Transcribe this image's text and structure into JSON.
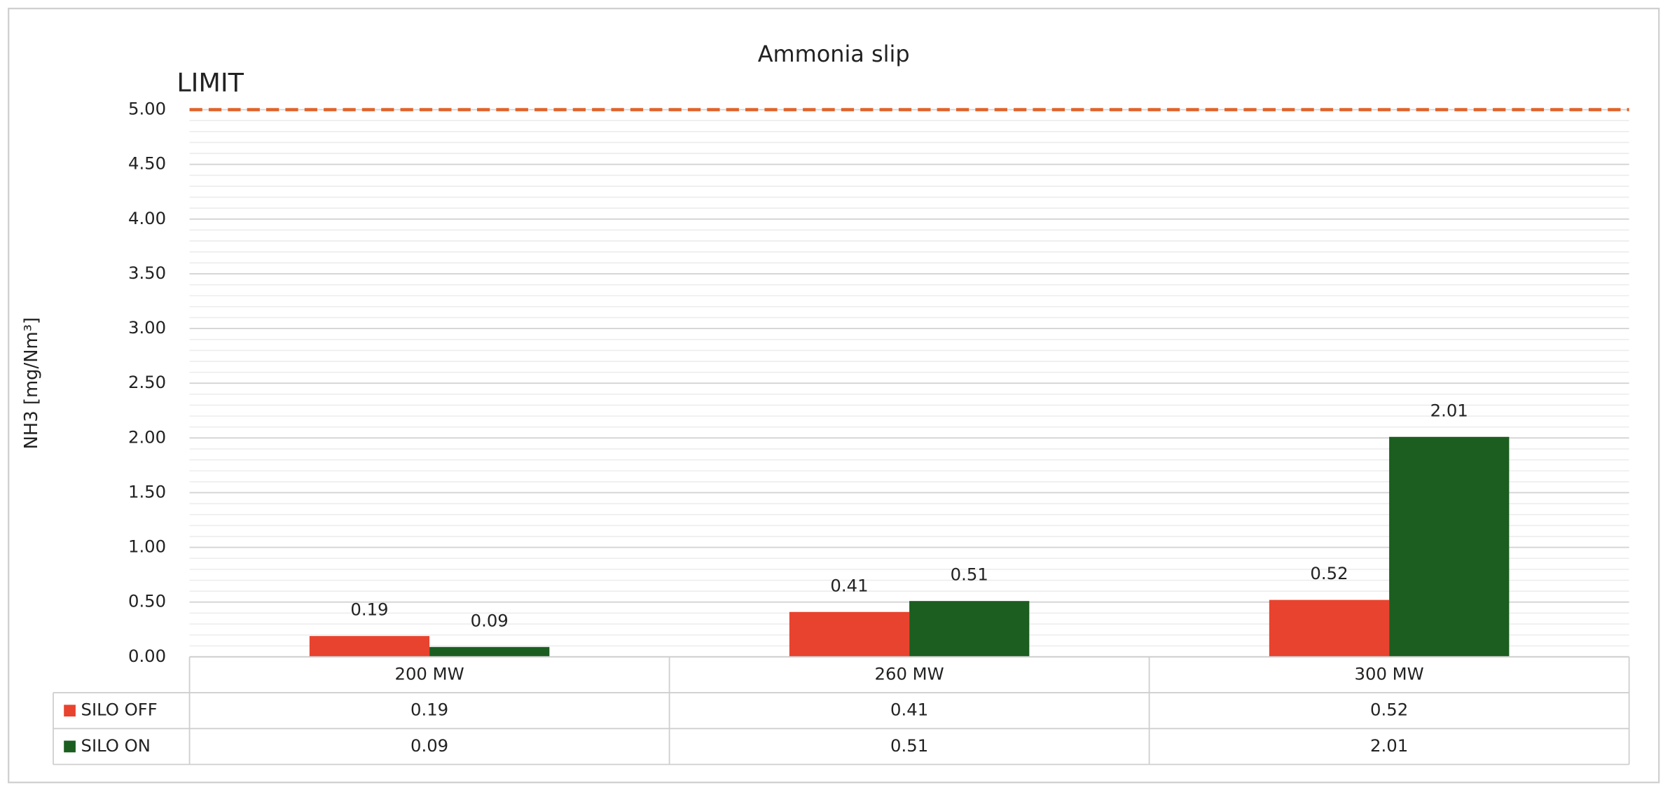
{
  "chart_data": {
    "type": "bar",
    "title": "Ammonia slip",
    "y_label": "NH3 [mg/Nm³]",
    "categories": [
      "200 MW",
      "260 MW",
      "300 MW"
    ],
    "series": [
      {
        "name": "SILO OFF",
        "color": "#e8432e",
        "values": [
          0.19,
          0.41,
          0.52
        ]
      },
      {
        "name": "SILO ON",
        "color": "#1b5e20",
        "values": [
          0.09,
          0.51,
          2.01
        ]
      }
    ],
    "ylim": [
      0,
      5
    ],
    "yticks": [
      {
        "value": 0,
        "label": "0.00"
      },
      {
        "value": 0.5,
        "label": "0.50"
      },
      {
        "value": 1,
        "label": "1.00"
      },
      {
        "value": 1.5,
        "label": "1.50"
      },
      {
        "value": 2,
        "label": "2.00"
      },
      {
        "value": 2.5,
        "label": "2.50"
      },
      {
        "value": 3,
        "label": "3.00"
      },
      {
        "value": 3.5,
        "label": "3.50"
      },
      {
        "value": 4,
        "label": "4.00"
      },
      {
        "value": 4.5,
        "label": "4.50"
      },
      {
        "value": 5,
        "label": "5.00"
      }
    ],
    "grid": true,
    "minor_grid": true,
    "limit": {
      "value": 5,
      "label": "LIMIT",
      "color": "#e0642c"
    },
    "data_table": true
  }
}
